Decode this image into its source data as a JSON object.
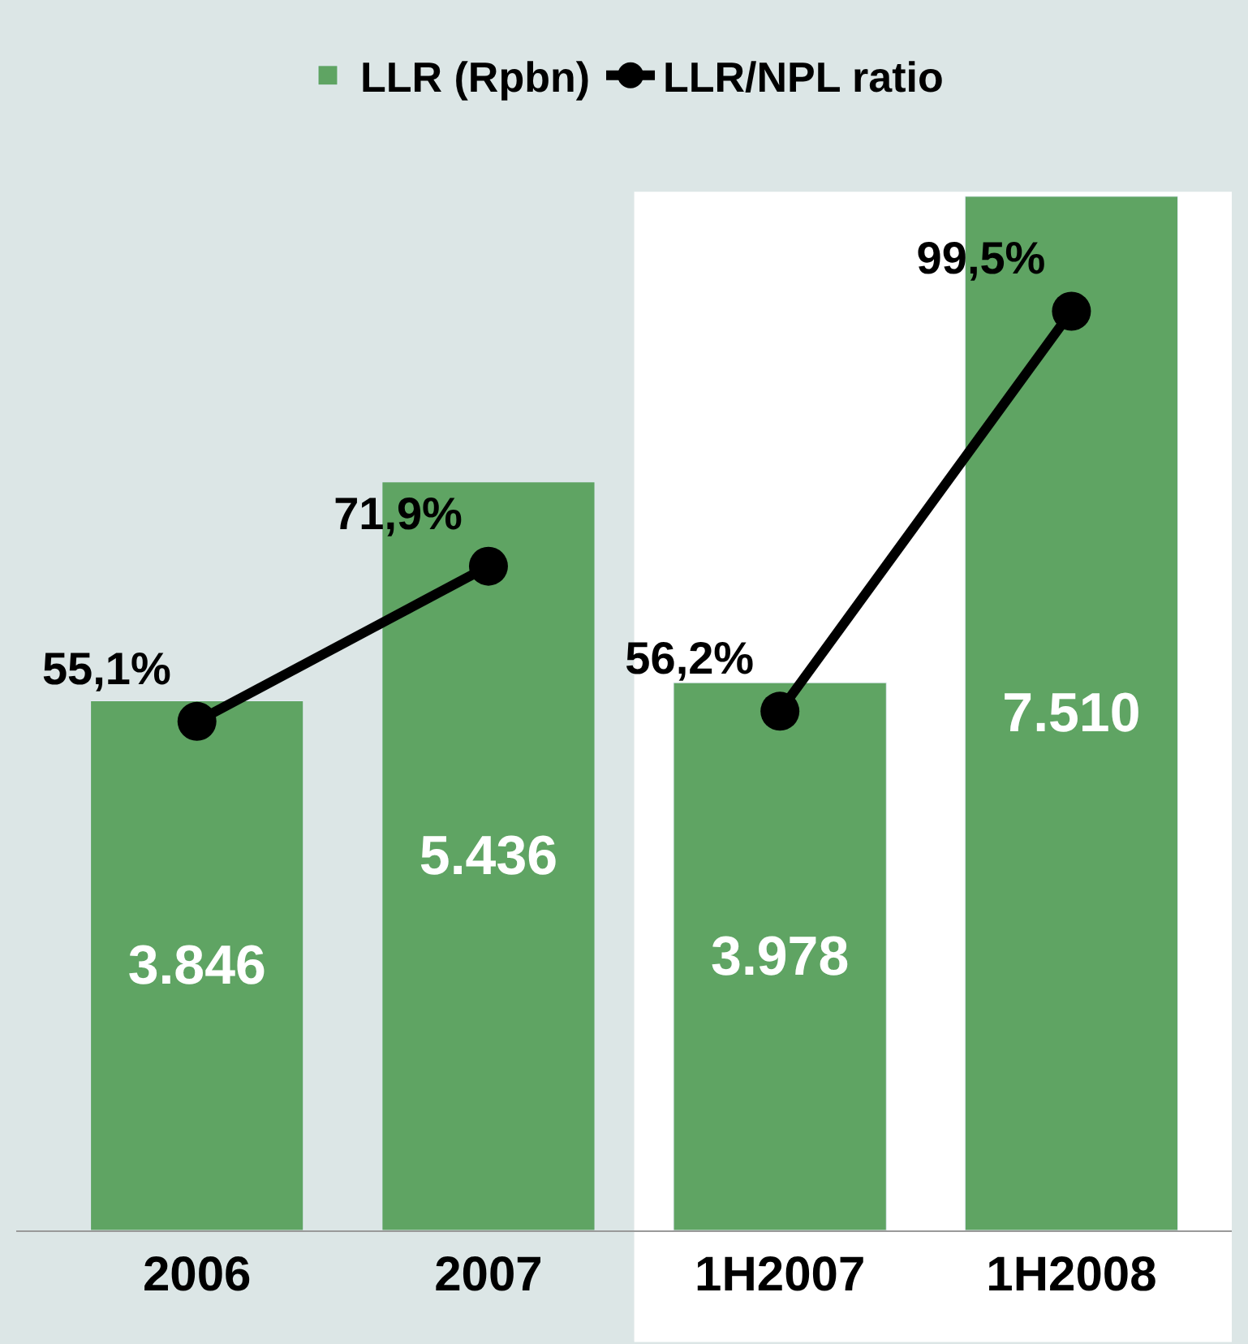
{
  "chart_data": {
    "type": "bar",
    "categories": [
      "2006",
      "2007",
      "1H2007",
      "1H2008"
    ],
    "series": [
      {
        "name": "LLR (Rpbn)",
        "color": "#5fa463",
        "values": [
          3846,
          5436,
          3978,
          7510
        ],
        "value_labels": [
          "3.846",
          "5.436",
          "3.978",
          "7.510"
        ]
      },
      {
        "name": "LLR/NPL ratio",
        "type": "line",
        "axis": "y2",
        "color": "#000000",
        "values": [
          55.1,
          71.9,
          null,
          null
        ],
        "value_labels": [
          "55,1%",
          "71,9%",
          null,
          null
        ]
      },
      {
        "type": "line",
        "axis": "y2",
        "color": "#000000",
        "values": [
          null,
          null,
          56.2,
          99.5
        ],
        "value_labels": [
          null,
          null,
          "56,2%",
          "99,5%"
        ]
      }
    ],
    "tick_labels": "x",
    "marker": "circle",
    "line_style": "solid",
    "legend": "top",
    "grid": false
  }
}
